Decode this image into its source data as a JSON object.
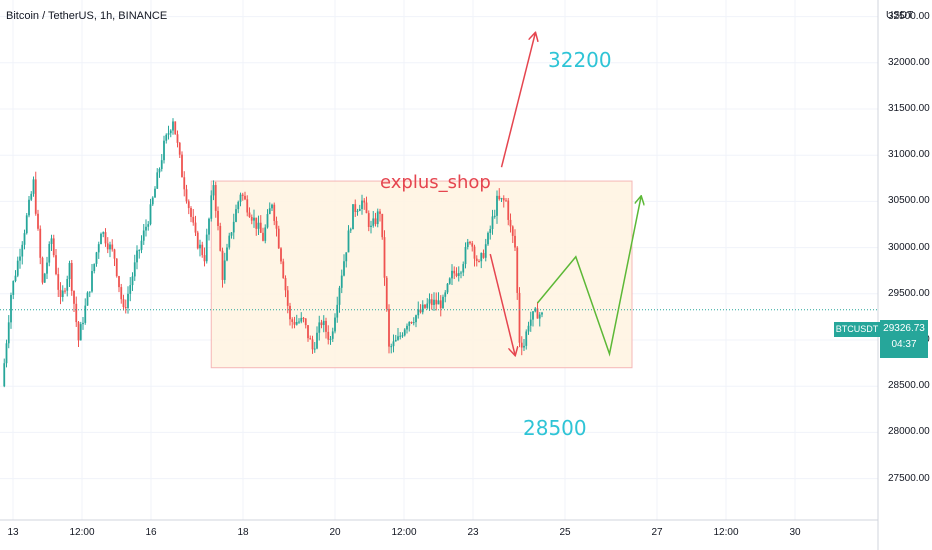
{
  "header": {
    "title": "Bitcoin / TetherUS, 1h, BINANCE"
  },
  "axis": {
    "currency": "USDT"
  },
  "price_tag": {
    "symbol": "BTCUSDT",
    "price": "29326.73",
    "countdown": "04:37"
  },
  "annotations": {
    "target_up": "32200",
    "target_down": "28500",
    "brand": "explus_shop"
  },
  "colors": {
    "up": "#26a69a",
    "down": "#ef5350",
    "zone_fill": "#fff3e0",
    "zone_border": "#f5b7b7",
    "arrow_red": "#e5454f",
    "arrow_green": "#5cb836",
    "label_cyan": "#2ec4d6"
  },
  "chart_data": {
    "type": "candlestick",
    "title": "Bitcoin / TetherUS, 1h, BINANCE",
    "y_unit": "USDT",
    "y_ticks": [
      "32500.00",
      "32000.00",
      "31500.00",
      "31000.00",
      "30500.00",
      "30000.00",
      "29500.00",
      "29000.00",
      "28500.00",
      "28000.00",
      "27500.00"
    ],
    "x_ticks": [
      "13",
      "12:00",
      "16",
      "18",
      "20",
      "12:00",
      "23",
      "25",
      "27",
      "12:00",
      "30"
    ],
    "ylim": [
      27200,
      32850
    ],
    "last_price": 29326.73,
    "close_path": [
      [
        0,
        28500
      ],
      [
        4,
        29500
      ],
      [
        10,
        30200
      ],
      [
        14,
        30700
      ],
      [
        18,
        29600
      ],
      [
        22,
        30100
      ],
      [
        26,
        29400
      ],
      [
        30,
        29800
      ],
      [
        34,
        29000
      ],
      [
        40,
        29700
      ],
      [
        44,
        30200
      ],
      [
        50,
        29900
      ],
      [
        54,
        29300
      ],
      [
        60,
        29900
      ],
      [
        66,
        30400
      ],
      [
        72,
        31100
      ],
      [
        76,
        31400
      ],
      [
        80,
        30800
      ],
      [
        86,
        30100
      ],
      [
        90,
        29900
      ],
      [
        94,
        30700
      ],
      [
        98,
        29700
      ],
      [
        102,
        30200
      ],
      [
        106,
        30600
      ],
      [
        110,
        30400
      ],
      [
        116,
        30100
      ],
      [
        120,
        30500
      ],
      [
        124,
        29900
      ],
      [
        128,
        29200
      ],
      [
        134,
        29200
      ],
      [
        138,
        28900
      ],
      [
        142,
        29200
      ],
      [
        146,
        29000
      ],
      [
        150,
        29600
      ],
      [
        156,
        30400
      ],
      [
        160,
        30500
      ],
      [
        164,
        30200
      ],
      [
        168,
        30400
      ],
      [
        170,
        29700
      ],
      [
        172,
        28900
      ],
      [
        176,
        29000
      ],
      [
        180,
        29200
      ],
      [
        186,
        29300
      ],
      [
        190,
        29400
      ],
      [
        196,
        29400
      ],
      [
        200,
        29700
      ],
      [
        204,
        29800
      ],
      [
        208,
        30100
      ],
      [
        212,
        29800
      ],
      [
        216,
        30100
      ],
      [
        220,
        30500
      ],
      [
        224,
        30500
      ],
      [
        226,
        30200
      ],
      [
        228,
        30000
      ],
      [
        230,
        29000
      ],
      [
        232,
        28950
      ],
      [
        234,
        29200
      ],
      [
        238,
        29300
      ],
      [
        240,
        29260
      ]
    ],
    "trading_range": {
      "low": 28700,
      "high": 30720
    },
    "projection": [
      [
        238,
        29400
      ],
      [
        255,
        29900
      ],
      [
        270,
        28850
      ],
      [
        284,
        30550
      ]
    ],
    "targets": [
      32200,
      28500
    ],
    "grid": true
  }
}
